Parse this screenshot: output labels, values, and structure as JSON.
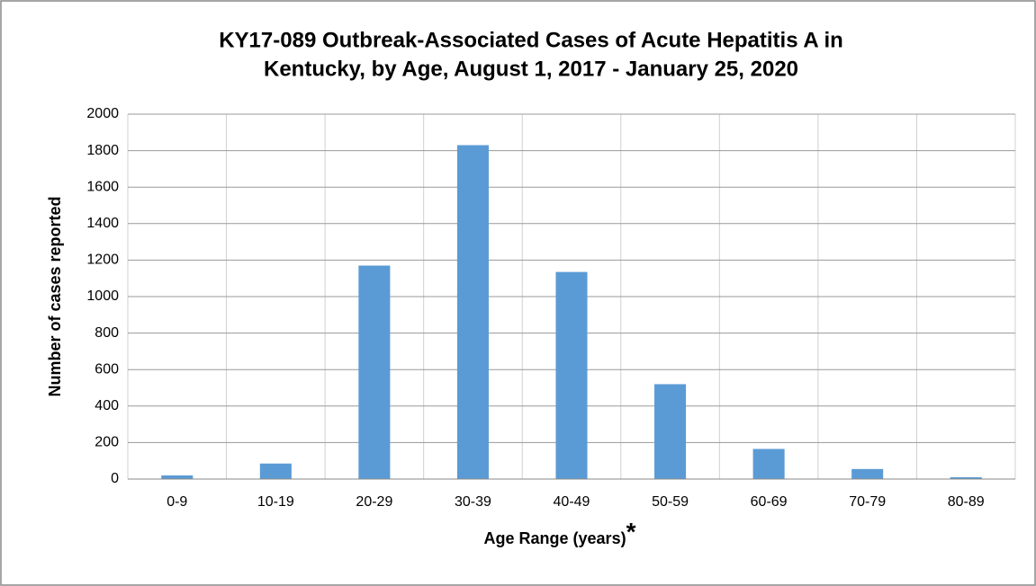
{
  "chart_data": {
    "type": "bar",
    "title": [
      "KY17-089 Outbreak-Associated Cases of Acute Hepatitis A in",
      "Kentucky, by Age, August 1, 2017 - January 25, 2020"
    ],
    "xlabel": "Age Range (years)",
    "xlabel_mark": "*",
    "ylabel": "Number of cases reported",
    "categories": [
      "0-9",
      "10-19",
      "20-29",
      "30-39",
      "40-49",
      "50-59",
      "60-69",
      "70-79",
      "80-89"
    ],
    "values": [
      20,
      85,
      1170,
      1830,
      1135,
      520,
      165,
      55,
      10
    ],
    "color": "#5b9bd5",
    "ylim": [
      0,
      2000
    ],
    "yticks": [
      0,
      200,
      400,
      600,
      800,
      1000,
      1200,
      1400,
      1600,
      1800,
      2000
    ],
    "grid": true
  }
}
